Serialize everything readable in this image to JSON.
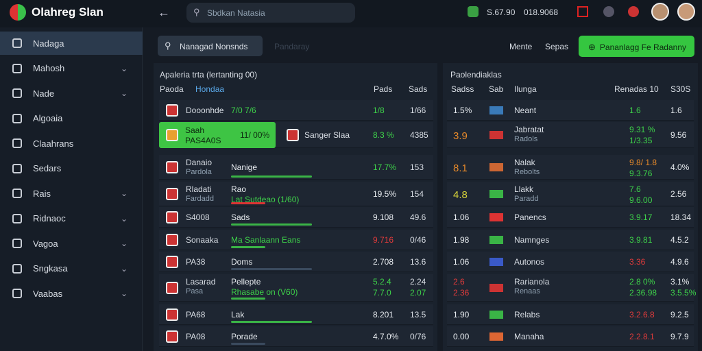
{
  "header": {
    "brand": "Olahreg Slan",
    "search": "Sbdkan Natasia",
    "stat_1": "S.67.90",
    "stat_2": "018.9068"
  },
  "sidebar": [
    {
      "label": "Nadaga"
    },
    {
      "label": "Mahosh"
    },
    {
      "label": "Nade"
    },
    {
      "label": "Algoaia"
    },
    {
      "label": "Claahrans"
    },
    {
      "label": "Sedars"
    },
    {
      "label": "Rais"
    },
    {
      "label": "Ridnaoc"
    },
    {
      "label": "Vagoa"
    },
    {
      "label": "Sngkasa"
    },
    {
      "label": "Vaabas"
    }
  ],
  "toolbar": {
    "search": "Nanagad Nonsnds",
    "placeholder": "Pandaray",
    "link_1": "Mente",
    "link_2": "Sepas",
    "button": "Pananlagg Fe Radanny"
  },
  "left": {
    "title": "Apaleria trta (lertanting 00)",
    "columns": [
      "Paoda",
      "Hondaa",
      "Pads",
      "Sads"
    ],
    "rows": [
      {
        "name": "Dooonhde",
        "detail": "7/0 7/6",
        "a": "1/8",
        "b": "1/66",
        "tone": "g"
      },
      {
        "name": "Saah",
        "sub": "PAS4A0S",
        "pct": "11/ 00%",
        "detail": "Sanger Slaa",
        "a": "8.3 %",
        "b": "4385",
        "tone": "g"
      },
      {
        "name": "Danaio",
        "sub": "Pardola",
        "detail": "Nanige",
        "a": "17.7%",
        "b": "153",
        "tone": "g"
      },
      {
        "name": "Rladati",
        "sub": "Fardadd",
        "detail": "Rao",
        "detail_sub": "Lat Sutdeao (1/60)",
        "a": "19.5%",
        "b": "154",
        "tone": "w"
      },
      {
        "name": "S4008",
        "detail": "Sads",
        "a": "9.108",
        "b": "49.6",
        "tone": "w"
      },
      {
        "name": "Sonaaka",
        "detail": "Ma Sanlaann Eans",
        "a": "9.716",
        "b": "0/46",
        "tone": "r"
      },
      {
        "name": "PA38",
        "detail": "Doms",
        "a": "2.708",
        "b": "13.6",
        "tone": "w"
      },
      {
        "name": "Lasarad",
        "sub": "Pasa",
        "detail": "Pellepte",
        "detail_sub": "Rhasabe on (V60)",
        "a": "5.2.4",
        "a2": "7.7.0",
        "b": "2.24",
        "b2": "2.07",
        "tone": "g"
      },
      {
        "name": "PA68",
        "detail": "Lak",
        "a": "8.201",
        "b": "13.5",
        "tone": "w"
      },
      {
        "name": "PA08",
        "detail": "Porade",
        "a": "4.7.0%",
        "b": "0/76",
        "tone": "w"
      }
    ]
  },
  "right": {
    "title": "Paolendiaklas",
    "columns": [
      "Sadss",
      "Sab",
      "Ilunga",
      "Renadas 10",
      "S30S"
    ],
    "rows": [
      {
        "rank": "1.5%",
        "name": "Neant",
        "a": "1.6",
        "b": "1.6",
        "tone": "g"
      },
      {
        "rank": "3.9",
        "name": "Jabratat",
        "sub": "Radols",
        "a": "9.31 %",
        "a2": "1/3.35",
        "b": "9.56",
        "tone": "g",
        "rtone": "o"
      },
      {
        "rank": "8.1",
        "name": "Nalak",
        "sub": "Rebolts",
        "a": "9.8/ 1.8",
        "a2": "9.3.76",
        "b": "4.0%",
        "tone": "o",
        "rtone": "o"
      },
      {
        "rank": "4.8",
        "name": "Llakk",
        "sub": "Paradd",
        "a": "7.6",
        "a2": "9.6.00",
        "b": "2.56",
        "tone": "g",
        "rtone": "y"
      },
      {
        "rank": "1.06",
        "name": "Panencs",
        "a": "3.9.17",
        "b": "18.34",
        "tone": "g"
      },
      {
        "rank": "1.98",
        "name": "Namnges",
        "a": "3.9.81",
        "b": "4.5.2",
        "tone": "g"
      },
      {
        "rank": "1.06",
        "name": "Autonos",
        "a": "3.36",
        "b": "4.9.6",
        "tone": "r"
      },
      {
        "rank": "2.6",
        "rank2": "2.36",
        "name": "Rarianola",
        "sub": "Renaas",
        "a": "2.8 0%",
        "a2": "2.36.98",
        "b": "3.1%",
        "b2": "3.5.5%",
        "tone": "g",
        "rtone": "r"
      },
      {
        "rank": "1.90",
        "name": "Relabs",
        "a": "3.2.6.8",
        "b": "9.2.5",
        "tone": "r"
      },
      {
        "rank": "0.00",
        "name": "Manaha",
        "a": "2.2.8.1",
        "b": "9.7.9",
        "tone": "r"
      }
    ]
  }
}
